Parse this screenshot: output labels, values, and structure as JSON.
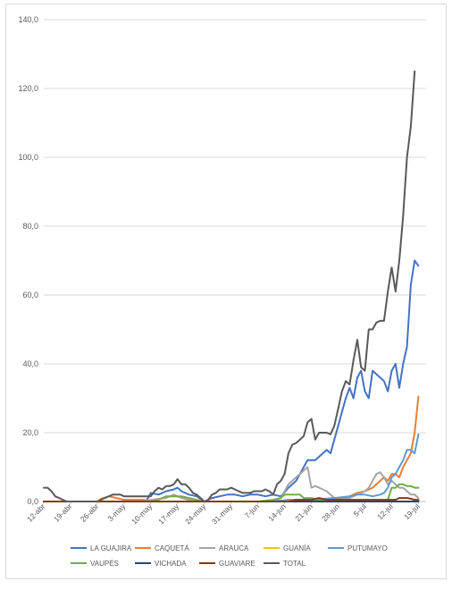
{
  "chart_data": {
    "type": "line",
    "title": "",
    "xlabel": "",
    "ylabel": "",
    "ylim": [
      0,
      140
    ],
    "yticks": [
      "0,0",
      "20,0",
      "40,0",
      "60,0",
      "80,0",
      "100,0",
      "120,0",
      "140,0"
    ],
    "xticks": [
      {
        "label": "12-abr",
        "day": 0
      },
      {
        "label": "19-abr",
        "day": 7
      },
      {
        "label": "26-abr",
        "day": 14
      },
      {
        "label": "3-may",
        "day": 21
      },
      {
        "label": "10-may",
        "day": 28
      },
      {
        "label": "17-may",
        "day": 35
      },
      {
        "label": "24-may",
        "day": 42
      },
      {
        "label": "31-may",
        "day": 49
      },
      {
        "label": "7-jun",
        "day": 56
      },
      {
        "label": "14-jun",
        "day": 63
      },
      {
        "label": "21-jun",
        "day": 70
      },
      {
        "label": "28-jun",
        "day": 77
      },
      {
        "label": "5-jul",
        "day": 84
      },
      {
        "label": "12-jul",
        "day": 91
      },
      {
        "label": "19-jul",
        "day": 98
      }
    ],
    "grid": true,
    "legend_position": "bottom",
    "series": [
      {
        "name": "LA GUAJIRA",
        "color": "#4472C4",
        "points": [
          [
            0,
            0
          ],
          [
            26,
            0
          ],
          [
            27,
            0.5
          ],
          [
            28,
            2.5
          ],
          [
            30,
            2
          ],
          [
            32,
            3
          ],
          [
            34,
            3.5
          ],
          [
            35,
            4
          ],
          [
            36,
            3
          ],
          [
            38,
            2
          ],
          [
            40,
            1.5
          ],
          [
            42,
            0
          ],
          [
            44,
            1
          ],
          [
            46,
            1.5
          ],
          [
            48,
            2
          ],
          [
            50,
            2
          ],
          [
            52,
            1.5
          ],
          [
            54,
            2
          ],
          [
            56,
            2
          ],
          [
            58,
            1.5
          ],
          [
            60,
            2
          ],
          [
            62,
            1.5
          ],
          [
            64,
            4
          ],
          [
            66,
            6
          ],
          [
            67,
            8
          ],
          [
            68,
            10
          ],
          [
            69,
            12
          ],
          [
            70,
            12
          ],
          [
            71,
            12
          ],
          [
            72,
            13
          ],
          [
            73,
            14
          ],
          [
            74,
            15
          ],
          [
            75,
            14
          ],
          [
            76,
            18
          ],
          [
            77,
            22
          ],
          [
            78,
            26
          ],
          [
            79,
            30
          ],
          [
            80,
            33
          ],
          [
            81,
            30
          ],
          [
            82,
            36
          ],
          [
            83,
            38
          ],
          [
            84,
            32
          ],
          [
            85,
            30
          ],
          [
            86,
            38
          ],
          [
            87,
            37
          ],
          [
            88,
            36
          ],
          [
            89,
            35
          ],
          [
            90,
            32
          ],
          [
            91,
            38
          ],
          [
            92,
            40
          ],
          [
            93,
            33
          ],
          [
            94,
            40
          ],
          [
            95,
            45
          ],
          [
            96,
            63
          ],
          [
            97,
            70
          ],
          [
            98,
            68.5
          ]
        ]
      },
      {
        "name": "CAQUETÁ",
        "color": "#ED7D31",
        "points": [
          [
            0,
            0
          ],
          [
            14,
            0
          ],
          [
            15,
            0.8
          ],
          [
            17,
            1.5
          ],
          [
            19,
            1
          ],
          [
            21,
            0.5
          ],
          [
            24,
            0.5
          ],
          [
            26,
            0.5
          ],
          [
            28,
            0
          ],
          [
            64,
            0
          ],
          [
            70,
            0.3
          ],
          [
            76,
            0.5
          ],
          [
            80,
            1.5
          ],
          [
            82,
            2.5
          ],
          [
            84,
            3
          ],
          [
            86,
            4
          ],
          [
            88,
            6
          ],
          [
            89,
            7
          ],
          [
            90,
            6
          ],
          [
            91,
            8
          ],
          [
            92,
            8
          ],
          [
            93,
            7
          ],
          [
            94,
            10
          ],
          [
            95,
            12
          ],
          [
            96,
            14
          ],
          [
            97,
            20
          ],
          [
            98,
            30.5
          ]
        ]
      },
      {
        "name": "ARAUCA",
        "color": "#A5A5A5",
        "points": [
          [
            0,
            0
          ],
          [
            26,
            0
          ],
          [
            28,
            0.5
          ],
          [
            32,
            1
          ],
          [
            34,
            2
          ],
          [
            36,
            1
          ],
          [
            38,
            0.5
          ],
          [
            40,
            0
          ],
          [
            60,
            0
          ],
          [
            62,
            1
          ],
          [
            63,
            3
          ],
          [
            64,
            5
          ],
          [
            65,
            6
          ],
          [
            66,
            7
          ],
          [
            67,
            8
          ],
          [
            68,
            9
          ],
          [
            69,
            10
          ],
          [
            70,
            4
          ],
          [
            71,
            4.5
          ],
          [
            72,
            4
          ],
          [
            73,
            3.5
          ],
          [
            74,
            3
          ],
          [
            75,
            2
          ],
          [
            76,
            1
          ],
          [
            77,
            0.5
          ],
          [
            80,
            1
          ],
          [
            82,
            2
          ],
          [
            84,
            3
          ],
          [
            85,
            4
          ],
          [
            86,
            6
          ],
          [
            87,
            8
          ],
          [
            88,
            8.5
          ],
          [
            89,
            7
          ],
          [
            90,
            5
          ],
          [
            91,
            6
          ],
          [
            92,
            5
          ],
          [
            93,
            4
          ],
          [
            94,
            4
          ],
          [
            95,
            3
          ],
          [
            96,
            2
          ],
          [
            97,
            2
          ],
          [
            98,
            1
          ]
        ]
      },
      {
        "name": "GUANÍA",
        "color": "#FFC000",
        "points": [
          [
            0,
            0
          ],
          [
            98,
            0
          ]
        ]
      },
      {
        "name": "PUTUMAYO",
        "color": "#5B9BD5",
        "points": [
          [
            0,
            0
          ],
          [
            60,
            0
          ],
          [
            64,
            0.5
          ],
          [
            70,
            0.5
          ],
          [
            76,
            1
          ],
          [
            80,
            1.5
          ],
          [
            82,
            2
          ],
          [
            84,
            2
          ],
          [
            86,
            1.5
          ],
          [
            88,
            2
          ],
          [
            89,
            2.5
          ],
          [
            90,
            4
          ],
          [
            91,
            7
          ],
          [
            92,
            8
          ],
          [
            93,
            10
          ],
          [
            94,
            12
          ],
          [
            95,
            15
          ],
          [
            96,
            15
          ],
          [
            97,
            14
          ],
          [
            98,
            19.5
          ]
        ]
      },
      {
        "name": "VAUPÉS",
        "color": "#70AD47",
        "points": [
          [
            0,
            0
          ],
          [
            28,
            0
          ],
          [
            30,
            0.5
          ],
          [
            32,
            1.5
          ],
          [
            34,
            1.5
          ],
          [
            36,
            1.5
          ],
          [
            38,
            1
          ],
          [
            40,
            0.5
          ],
          [
            42,
            0
          ],
          [
            56,
            0
          ],
          [
            60,
            0.5
          ],
          [
            62,
            1
          ],
          [
            63,
            2
          ],
          [
            64,
            2
          ],
          [
            65,
            2
          ],
          [
            66,
            2
          ],
          [
            67,
            2
          ],
          [
            68,
            1
          ],
          [
            69,
            1
          ],
          [
            70,
            1
          ],
          [
            72,
            0.5
          ],
          [
            76,
            0.5
          ],
          [
            86,
            0
          ],
          [
            90,
            0.5
          ],
          [
            91,
            4
          ],
          [
            92,
            4
          ],
          [
            93,
            5
          ],
          [
            94,
            5
          ],
          [
            95,
            4.5
          ],
          [
            96,
            4.5
          ],
          [
            97,
            4
          ],
          [
            98,
            4
          ]
        ]
      },
      {
        "name": "VICHADA",
        "color": "#264478",
        "points": [
          [
            0,
            0
          ],
          [
            98,
            0
          ]
        ]
      },
      {
        "name": "GUAVIARE",
        "color": "#843C0C",
        "points": [
          [
            0,
            0
          ],
          [
            64,
            0
          ],
          [
            66,
            0.5
          ],
          [
            70,
            0.5
          ],
          [
            72,
            1
          ],
          [
            74,
            0.5
          ],
          [
            80,
            0.5
          ],
          [
            84,
            0.5
          ],
          [
            88,
            0.5
          ],
          [
            90,
            0.5
          ],
          [
            92,
            0.5
          ],
          [
            93,
            1
          ],
          [
            95,
            1
          ],
          [
            96,
            0.8
          ],
          [
            97,
            0.5
          ],
          [
            98,
            0.5
          ]
        ]
      },
      {
        "name": "TOTAL",
        "color": "#595959",
        "points": [
          [
            0,
            4
          ],
          [
            1,
            4
          ],
          [
            2,
            3
          ],
          [
            3,
            1.5
          ],
          [
            4,
            1
          ],
          [
            5,
            0.5
          ],
          [
            6,
            0
          ],
          [
            7,
            0
          ],
          [
            8,
            0
          ],
          [
            10,
            0
          ],
          [
            12,
            0
          ],
          [
            14,
            0
          ],
          [
            16,
            1
          ],
          [
            18,
            2
          ],
          [
            20,
            2
          ],
          [
            21,
            1.5
          ],
          [
            23,
            1.5
          ],
          [
            25,
            1.5
          ],
          [
            27,
            1.5
          ],
          [
            28,
            1.5
          ],
          [
            29,
            3
          ],
          [
            30,
            4
          ],
          [
            31,
            3.5
          ],
          [
            32,
            4.5
          ],
          [
            33,
            4.5
          ],
          [
            34,
            5
          ],
          [
            35,
            6.5
          ],
          [
            36,
            5
          ],
          [
            37,
            5
          ],
          [
            38,
            4
          ],
          [
            39,
            2.5
          ],
          [
            40,
            2
          ],
          [
            41,
            1
          ],
          [
            42,
            0
          ],
          [
            43,
            0.5
          ],
          [
            44,
            2
          ],
          [
            45,
            2.5
          ],
          [
            46,
            3.5
          ],
          [
            47,
            3.5
          ],
          [
            48,
            3.5
          ],
          [
            49,
            4
          ],
          [
            50,
            3.5
          ],
          [
            51,
            3
          ],
          [
            52,
            2.5
          ],
          [
            53,
            2.5
          ],
          [
            54,
            2.5
          ],
          [
            55,
            3
          ],
          [
            56,
            3
          ],
          [
            57,
            3
          ],
          [
            58,
            3.5
          ],
          [
            59,
            3
          ],
          [
            60,
            2
          ],
          [
            61,
            5
          ],
          [
            62,
            6
          ],
          [
            63,
            8
          ],
          [
            64,
            14
          ],
          [
            65,
            16.5
          ],
          [
            66,
            17
          ],
          [
            67,
            18
          ],
          [
            68,
            19
          ],
          [
            69,
            23
          ],
          [
            70,
            24
          ],
          [
            71,
            18
          ],
          [
            72,
            20
          ],
          [
            73,
            20
          ],
          [
            74,
            20
          ],
          [
            75,
            19.5
          ],
          [
            76,
            22
          ],
          [
            77,
            27
          ],
          [
            78,
            32
          ],
          [
            79,
            35
          ],
          [
            80,
            34
          ],
          [
            81,
            41
          ],
          [
            82,
            47
          ],
          [
            83,
            39
          ],
          [
            84,
            38
          ],
          [
            85,
            50
          ],
          [
            86,
            50
          ],
          [
            87,
            52
          ],
          [
            88,
            52.5
          ],
          [
            89,
            52.5
          ],
          [
            90,
            61
          ],
          [
            91,
            68
          ],
          [
            92,
            61
          ],
          [
            93,
            70
          ],
          [
            94,
            83
          ],
          [
            95,
            100
          ],
          [
            96,
            109
          ],
          [
            97,
            125
          ]
        ]
      }
    ]
  }
}
